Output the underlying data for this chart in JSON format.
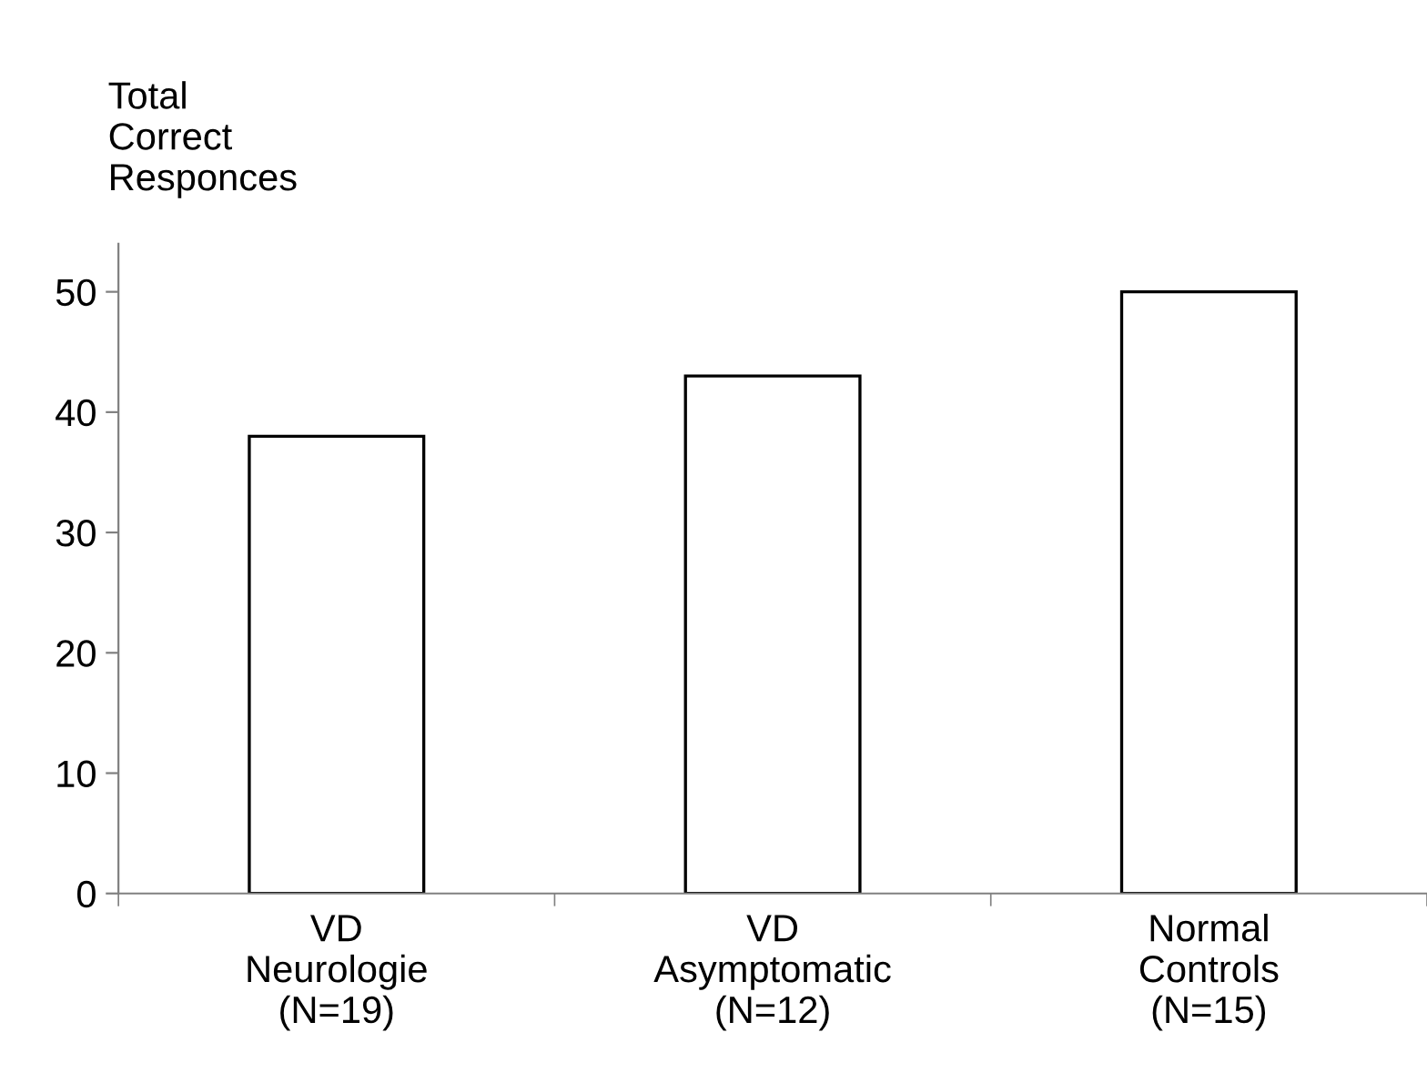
{
  "chart_data": {
    "type": "bar",
    "ylabel": "Total\nCorrect\nResponces",
    "categories": [
      "VD\nNeurologie\n(N=19)",
      "VD\nAsymptomatic\n(N=12)",
      "Normal\nControls\n(N=15)"
    ],
    "values": [
      38,
      43,
      50
    ],
    "color": "#ffffff",
    "ylim": [
      0,
      54
    ],
    "yticks": [
      0,
      10,
      20,
      30,
      40,
      50
    ],
    "grid": false,
    "legend": false
  }
}
